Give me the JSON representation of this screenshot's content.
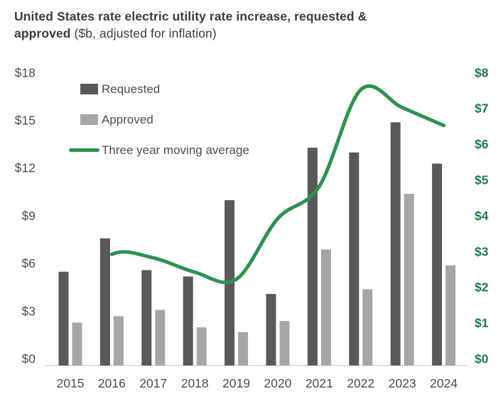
{
  "title": {
    "bold_line1": "United States rate electric utility rate increase, requested &",
    "bold_word2": "approved",
    "normal_suffix": " ($b, adjusted for inflation)"
  },
  "legend": [
    {
      "label": "Requested",
      "type": "bar",
      "color": "#595959"
    },
    {
      "label": "Approved",
      "type": "bar",
      "color": "#a6a6a6"
    },
    {
      "label": "Three year moving average",
      "type": "line",
      "color": "#2e9150"
    }
  ],
  "chart_data": {
    "type": "bar+line combo, dual axis",
    "categories": [
      "2015",
      "2016",
      "2017",
      "2018",
      "2019",
      "2020",
      "2021",
      "2022",
      "2023",
      "2024"
    ],
    "series": [
      {
        "name": "Requested",
        "type": "bar",
        "axis": "left",
        "color": "#595959",
        "values": [
          5.9,
          8.0,
          6.0,
          5.6,
          10.4,
          4.5,
          13.7,
          13.4,
          15.3,
          12.7
        ]
      },
      {
        "name": "Approved",
        "type": "bar",
        "axis": "left",
        "color": "#a6a6a6",
        "values": [
          2.7,
          3.1,
          3.5,
          2.4,
          2.1,
          2.8,
          7.3,
          4.8,
          10.8,
          6.3
        ]
      },
      {
        "name": "Three year moving average",
        "type": "line",
        "axis": "right",
        "color": "#2e9150",
        "values": [
          null,
          3.1,
          3.0,
          2.6,
          2.4,
          4.1,
          5.0,
          7.7,
          7.2,
          6.7
        ]
      }
    ],
    "left_axis": {
      "tick_labels": [
        "$0",
        "$3",
        "$6",
        "$9",
        "$12",
        "$15",
        "$18"
      ],
      "tick_values": [
        0,
        3,
        6,
        9,
        12,
        15,
        18
      ],
      "range": [
        0,
        18
      ],
      "text_color": "#4d4d4d"
    },
    "right_axis": {
      "tick_labels": [
        "$0",
        "$1",
        "$2",
        "$3",
        "$4",
        "$5",
        "$6",
        "$7",
        "$8"
      ],
      "tick_values": [
        0,
        1,
        2,
        3,
        4,
        5,
        6,
        7,
        8
      ],
      "range": [
        0,
        8
      ],
      "text_color": "#1f7a48"
    },
    "grid": "off",
    "legend_position": "top-left inside plot",
    "baseline_color": "#d9d9d9"
  }
}
